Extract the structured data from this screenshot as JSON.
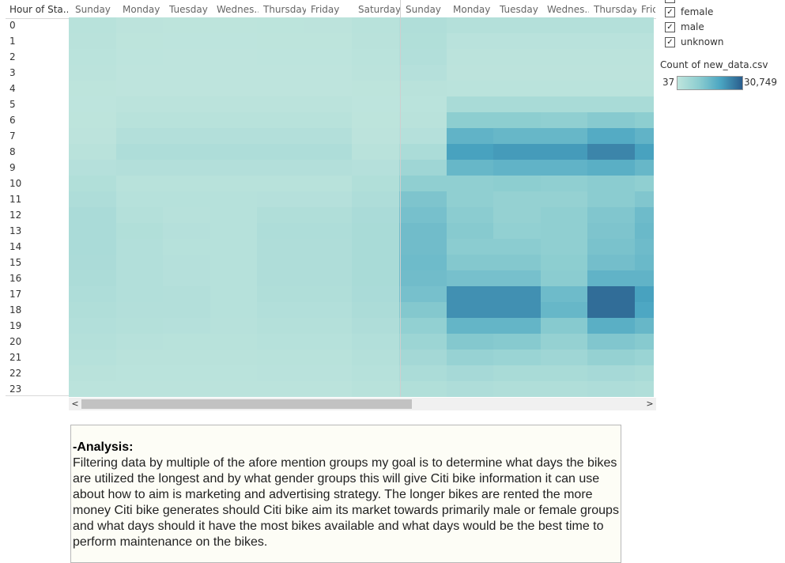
{
  "row_header_title": "Hour of Sta..",
  "legend": {
    "items": [
      {
        "label": "female",
        "checked": true
      },
      {
        "label": "male",
        "checked": true
      },
      {
        "label": "unknown",
        "checked": true
      }
    ],
    "checkmark": "✓",
    "color_title": "Count of new_data.csv",
    "min_label": "37",
    "max_label": "30,749",
    "ramp_colors": [
      "#bfe5dd",
      "#8ccdd0",
      "#4aa5c2",
      "#2a5d8c"
    ]
  },
  "scrollbar": {
    "left_arrow": "<",
    "right_arrow": ">"
  },
  "analysis": {
    "title": "-Analysis:",
    "body": "Filtering data by multiple of the afore mention groups my goal is to determine what days the bikes are utilized the longest and by what gender groups this will give Citi bike  information it can use about how to aim is marketing and advertising strategy. The longer bikes are rented the more money Citi bike generates should Citi bike aim its market towards primarily male or female groups and what days should it have the most bikes available and what days would be the best time to perform maintenance on the bikes."
  },
  "chart_data": {
    "type": "heatmap",
    "rows_label": "Hour of Sta..",
    "rows": [
      "0",
      "1",
      "2",
      "3",
      "4",
      "5",
      "6",
      "7",
      "8",
      "9",
      "10",
      "11",
      "12",
      "13",
      "14",
      "15",
      "16",
      "17",
      "18",
      "19",
      "20",
      "21",
      "22",
      "23"
    ],
    "columns": [
      "Sunday",
      "Monday",
      "Tuesday",
      "Wednes..",
      "Thursday",
      "Friday",
      "Saturday",
      "Sunday",
      "Monday",
      "Tuesday",
      "Wednes..",
      "Thursday",
      "Frid"
    ],
    "color_range": [
      37,
      30749
    ],
    "values": [
      [
        1500,
        700,
        500,
        500,
        600,
        700,
        1500,
        3000,
        2200,
        2200,
        2200,
        2200,
        2200
      ],
      [
        1300,
        500,
        400,
        400,
        500,
        500,
        1300,
        2800,
        1200,
        1200,
        1200,
        1200,
        1200
      ],
      [
        1100,
        400,
        300,
        300,
        400,
        400,
        1100,
        2600,
        900,
        900,
        900,
        900,
        900
      ],
      [
        800,
        300,
        300,
        300,
        300,
        300,
        800,
        2000,
        700,
        700,
        700,
        700,
        700
      ],
      [
        500,
        300,
        300,
        300,
        300,
        300,
        500,
        1300,
        1000,
        1000,
        1000,
        1000,
        1000
      ],
      [
        400,
        800,
        800,
        800,
        800,
        800,
        400,
        1000,
        4500,
        4500,
        4500,
        4500,
        4500
      ],
      [
        500,
        1500,
        1500,
        1500,
        1500,
        1500,
        500,
        1300,
        10000,
        10000,
        9500,
        11000,
        10000
      ],
      [
        700,
        2500,
        2500,
        2500,
        2500,
        2500,
        700,
        2000,
        17000,
        16000,
        16000,
        19000,
        17000
      ],
      [
        1300,
        3500,
        3500,
        3500,
        3500,
        3500,
        1300,
        4000,
        21000,
        22000,
        22000,
        25000,
        21000
      ],
      [
        2000,
        2500,
        2500,
        2500,
        2500,
        2500,
        2000,
        6500,
        16000,
        17000,
        17000,
        18000,
        16000
      ],
      [
        2800,
        1500,
        1500,
        1500,
        1500,
        1500,
        2800,
        9500,
        9500,
        10000,
        9500,
        10500,
        9500
      ],
      [
        3500,
        1800,
        1800,
        1800,
        2000,
        2000,
        3500,
        12500,
        9500,
        8500,
        8500,
        10500,
        12000
      ],
      [
        4200,
        2300,
        1700,
        1800,
        3000,
        3000,
        4200,
        13500,
        10500,
        8500,
        9500,
        12000,
        15000
      ],
      [
        4200,
        2800,
        2000,
        1800,
        3500,
        3500,
        4500,
        14500,
        11000,
        9000,
        9500,
        12500,
        15500
      ],
      [
        4200,
        2600,
        1900,
        1800,
        3300,
        3300,
        4500,
        14500,
        10500,
        10500,
        9500,
        13000,
        15000
      ],
      [
        4100,
        2600,
        2000,
        1800,
        3300,
        3300,
        4500,
        15000,
        11500,
        11500,
        10000,
        14000,
        15500
      ],
      [
        3800,
        2700,
        2000,
        1800,
        3300,
        3300,
        4500,
        14500,
        13500,
        13500,
        10500,
        17000,
        17000
      ],
      [
        3500,
        2700,
        2400,
        1800,
        3000,
        3000,
        4200,
        13500,
        23500,
        23500,
        15000,
        28500,
        21000
      ],
      [
        3000,
        2500,
        2400,
        1800,
        2700,
        2700,
        3800,
        11500,
        23500,
        23500,
        16000,
        28500,
        20000
      ],
      [
        2600,
        2200,
        2000,
        1700,
        2300,
        2300,
        3300,
        9000,
        16500,
        16500,
        11000,
        18000,
        16000
      ],
      [
        2200,
        1700,
        1500,
        1500,
        1900,
        1900,
        2700,
        7000,
        11500,
        11000,
        8500,
        12000,
        11000
      ],
      [
        1800,
        1300,
        1300,
        1300,
        1500,
        1500,
        2200,
        5500,
        8000,
        7500,
        6500,
        8500,
        7500
      ],
      [
        1300,
        1100,
        1100,
        1100,
        1200,
        1200,
        1800,
        4000,
        5000,
        4500,
        4500,
        5000,
        4500
      ],
      [
        900,
        800,
        800,
        800,
        900,
        900,
        1400,
        2800,
        3500,
        3000,
        3000,
        3500,
        3000
      ]
    ]
  }
}
